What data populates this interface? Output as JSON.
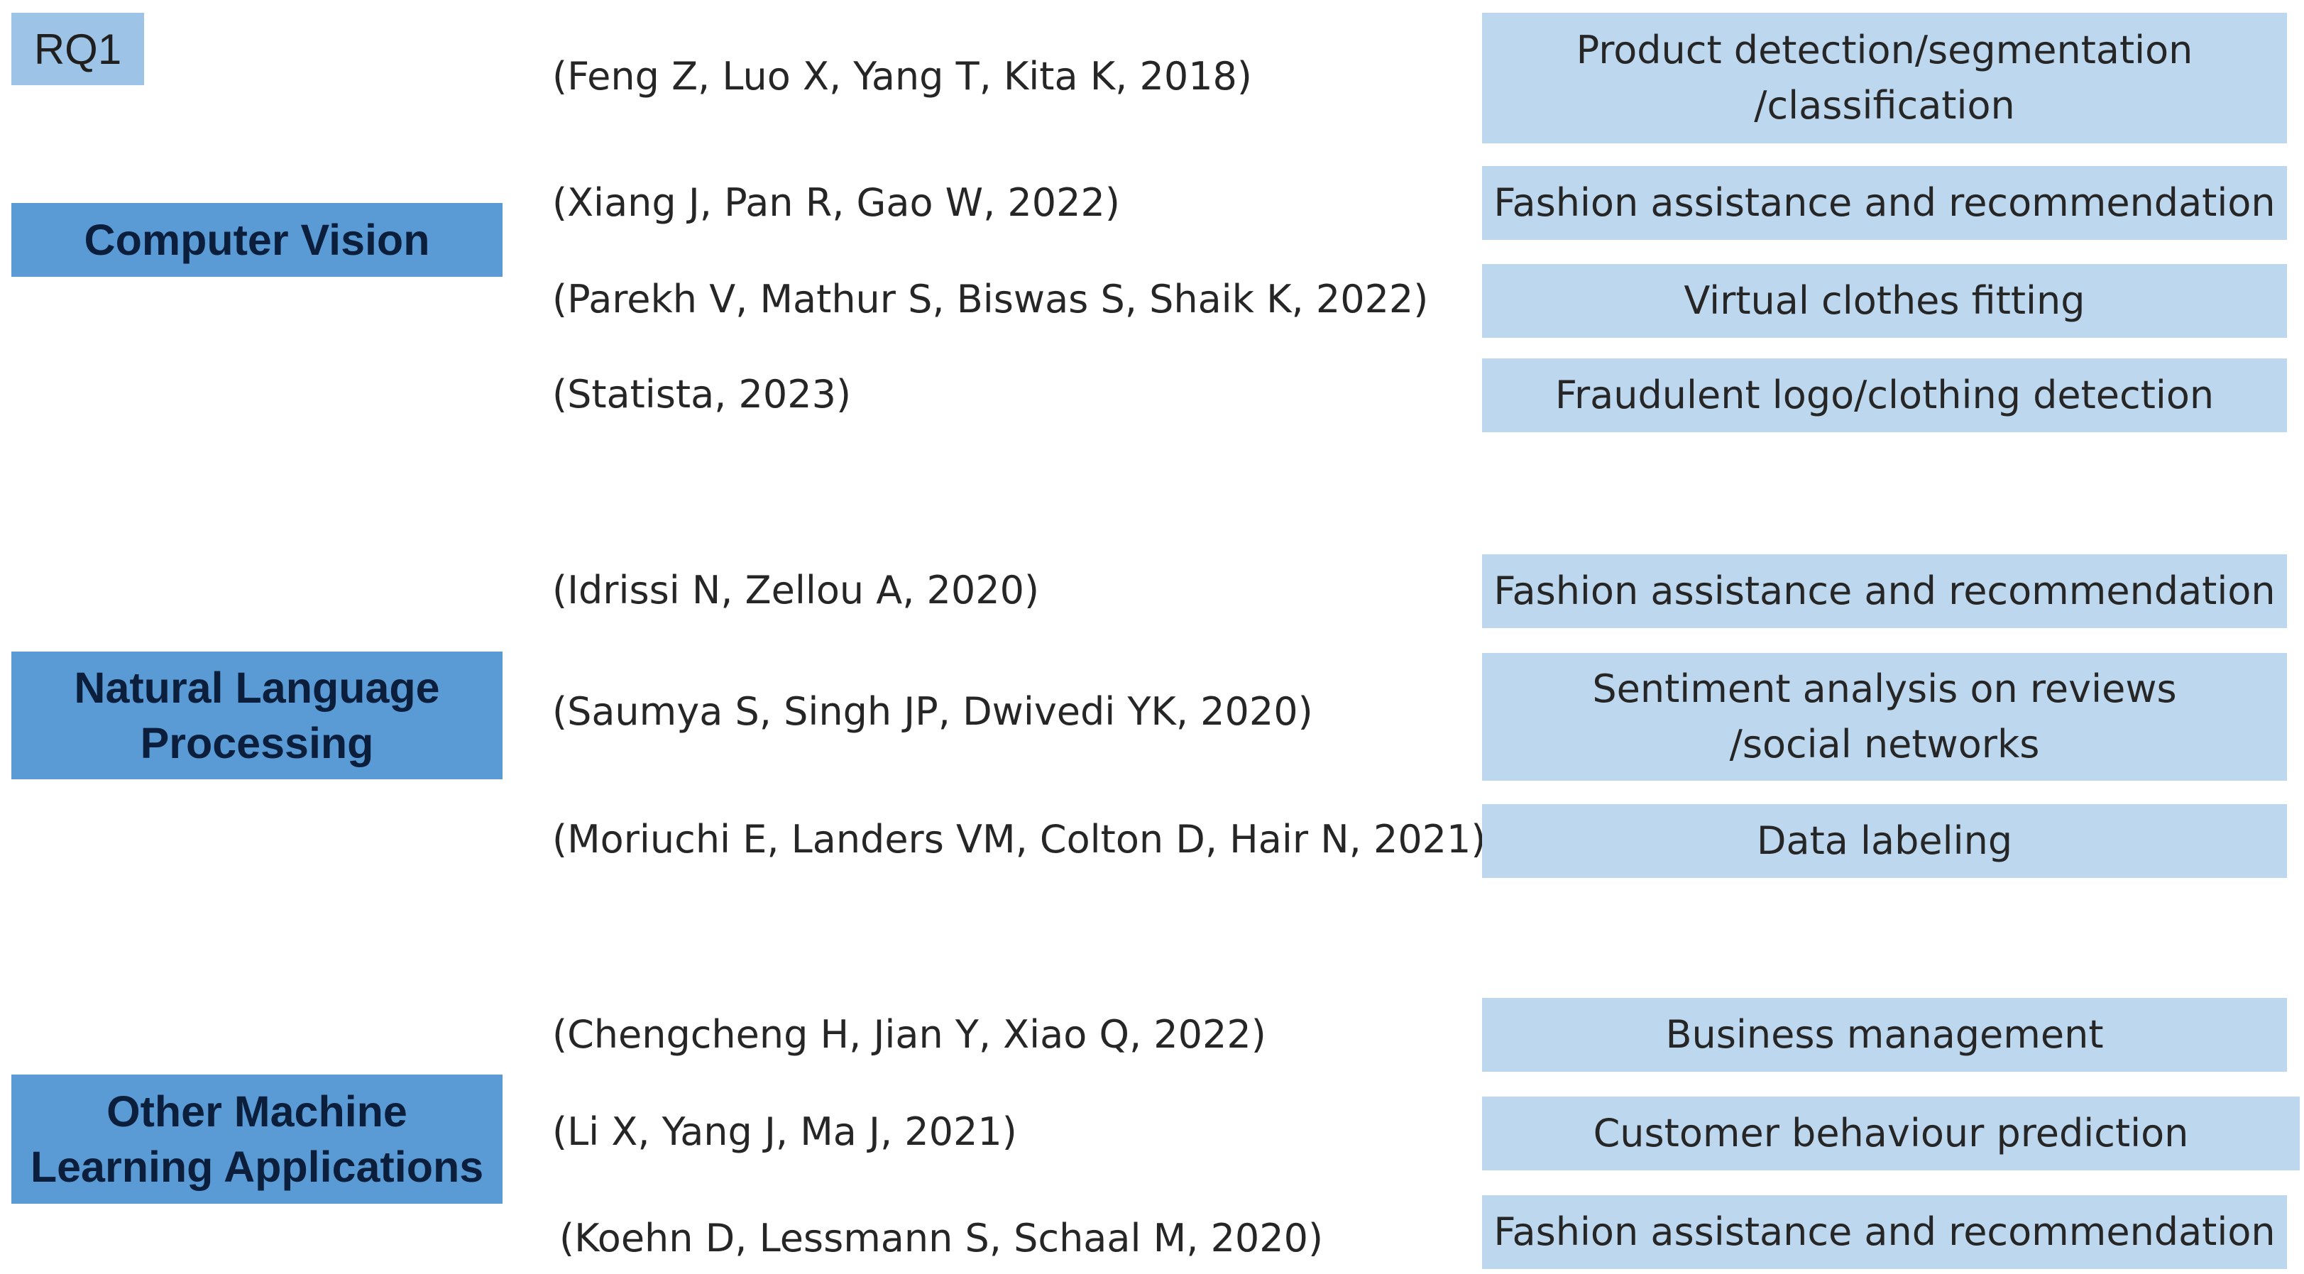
{
  "badge": "RQ1",
  "categories": {
    "cv": "Computer Vision",
    "nlp": "Natural Language\nProcessing",
    "ml": "Other Machine\nLearning Applications"
  },
  "references": [
    "(Feng Z, Luo X, Yang T, Kita K, 2018)",
    "(Xiang J, Pan R, Gao W, 2022)",
    "(Parekh V, Mathur S, Biswas S, Shaik K, 2022)",
    "(Statista, 2023)",
    "(Idrissi N, Zellou A, 2020)",
    "(Saumya S, Singh JP, Dwivedi YK, 2020)",
    "(Moriuchi E, Landers VM, Colton D, Hair N, 2021)",
    "(Chengcheng H, Jian Y, Xiao Q, 2022)",
    "(Li X, Yang J, Ma J, 2021)",
    "(Koehn D, Lessmann S, Schaal M, 2020)"
  ],
  "applications": [
    "Product detection/segmentation\n/classification",
    "Fashion assistance and recommendation",
    "Virtual clothes fitting",
    "Fraudulent logo/clothing detection",
    "Fashion assistance and recommendation",
    "Sentiment analysis on reviews\n/social networks",
    "Data labeling",
    "Business management",
    "Customer behaviour prediction",
    "Fashion assistance and recommendation"
  ],
  "colors": {
    "badge": "#9dc3e6",
    "category_box": "#5b9bd5",
    "application_box": "#bdd7ee"
  }
}
